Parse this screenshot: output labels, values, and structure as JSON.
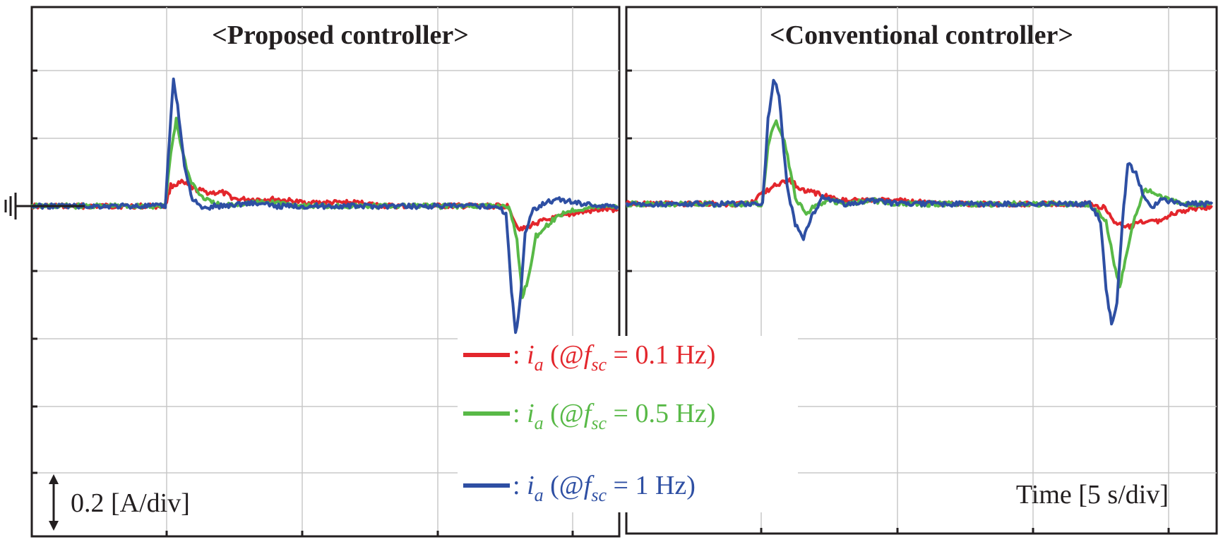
{
  "chart_data": [
    {
      "type": "line",
      "title": "<Proposed controller>",
      "units": {
        "y": "A",
        "y_scale": "0.2 [A/div]",
        "x": "s",
        "x_scale": "Time [5 s/div]"
      },
      "grid": true,
      "ylim": [
        -0.8,
        0.8
      ],
      "xlim": [
        0,
        21.5
      ],
      "series": [
        {
          "name_prefix": "ia",
          "freq_label": "0.1 Hz",
          "color": "#e3262c",
          "x": [
            0,
            4.5,
            4.9,
            5.1,
            5.5,
            6.0,
            6.5,
            7.0,
            7.5,
            8.0,
            9.0,
            10.0,
            11.0,
            12.0,
            13.0,
            14.0,
            17.0,
            17.5,
            17.8,
            18.0,
            18.5,
            19.0,
            19.5,
            20.0,
            21.0,
            21.5
          ],
          "y": [
            0,
            0.0,
            0.0,
            0.06,
            0.07,
            0.05,
            0.04,
            0.04,
            0.02,
            0.02,
            0.02,
            0.01,
            0.01,
            0.01,
            0.0,
            0.0,
            0.0,
            0.0,
            -0.06,
            -0.07,
            -0.05,
            -0.04,
            -0.03,
            -0.02,
            -0.01,
            -0.01
          ]
        },
        {
          "name_prefix": "ia",
          "freq_label": "0.5 Hz",
          "color": "#58b947",
          "x": [
            0,
            4.5,
            4.9,
            5.1,
            5.3,
            5.5,
            5.8,
            6.2,
            6.6,
            7.0,
            8.0,
            9.0,
            10.0,
            12.0,
            14.0,
            17.0,
            17.5,
            17.8,
            18.0,
            18.2,
            18.5,
            19.0,
            19.5,
            20.0,
            21.0,
            21.5
          ],
          "y": [
            0,
            0.0,
            0.0,
            0.16,
            0.26,
            0.17,
            0.08,
            0.03,
            0.01,
            0.0,
            0.01,
            0.01,
            0.0,
            0.0,
            0.0,
            0.0,
            0.0,
            -0.1,
            -0.27,
            -0.22,
            -0.09,
            -0.05,
            -0.02,
            -0.01,
            0.0,
            0.0
          ]
        },
        {
          "name_prefix": "ia",
          "freq_label": "1 Hz",
          "color": "#2e4fa3",
          "x": [
            0,
            4.5,
            4.9,
            5.05,
            5.2,
            5.35,
            5.6,
            5.9,
            6.3,
            6.7,
            7.0,
            8.0,
            9.0,
            10.0,
            12.0,
            14.0,
            17.0,
            17.4,
            17.6,
            17.75,
            17.9,
            18.1,
            18.4,
            18.8,
            19.3,
            20.0,
            21.0,
            21.5
          ],
          "y": [
            0,
            0.0,
            0.0,
            0.2,
            0.38,
            0.3,
            0.12,
            0.02,
            -0.01,
            0.0,
            0.0,
            0.01,
            0.0,
            0.0,
            0.0,
            0.0,
            0.0,
            -0.02,
            -0.25,
            -0.38,
            -0.3,
            -0.08,
            -0.01,
            0.01,
            0.02,
            0.01,
            0.0,
            0.0
          ]
        }
      ]
    },
    {
      "type": "line",
      "title": "<Conventional controller>",
      "grid": true,
      "ylim": [
        -0.8,
        0.8
      ],
      "xlim": [
        0,
        21.5
      ],
      "series": [
        {
          "name_prefix": "ia",
          "freq_label": "0.1 Hz",
          "color": "#e3262c",
          "x": [
            0,
            4.5,
            5.0,
            5.5,
            6.0,
            6.5,
            7.0,
            7.5,
            8.0,
            9.0,
            10.0,
            12.0,
            14.0,
            17.0,
            17.5,
            17.9,
            18.3,
            18.7,
            19.0,
            19.5,
            20.0,
            20.5,
            21.0,
            21.5
          ],
          "y": [
            0,
            0.0,
            0.03,
            0.06,
            0.07,
            0.04,
            0.03,
            0.02,
            0.01,
            0.01,
            0.01,
            0.0,
            0.0,
            0.0,
            -0.01,
            -0.05,
            -0.07,
            -0.06,
            -0.05,
            -0.05,
            -0.03,
            -0.02,
            -0.01,
            -0.01
          ]
        },
        {
          "name_prefix": "ia",
          "freq_label": "0.5 Hz",
          "color": "#58b947",
          "x": [
            0,
            4.5,
            5.0,
            5.2,
            5.5,
            5.8,
            6.2,
            6.6,
            7.0,
            7.5,
            8.0,
            9.0,
            10.0,
            12.0,
            14.0,
            17.0,
            17.6,
            17.9,
            18.1,
            18.3,
            18.6,
            19.0,
            19.5,
            20.0,
            20.5,
            21.0,
            21.5
          ],
          "y": [
            0,
            0.0,
            0.0,
            0.18,
            0.25,
            0.19,
            0.02,
            -0.03,
            0.0,
            0.01,
            0.0,
            0.01,
            0.0,
            0.0,
            0.0,
            0.0,
            -0.05,
            -0.18,
            -0.25,
            -0.17,
            -0.05,
            0.04,
            0.03,
            0.01,
            0.0,
            0.0,
            0.0
          ]
        },
        {
          "name_prefix": "ia",
          "freq_label": "1 Hz",
          "color": "#2e4fa3",
          "x": [
            0,
            4.5,
            5.0,
            5.2,
            5.4,
            5.6,
            5.9,
            6.2,
            6.5,
            6.8,
            7.2,
            7.6,
            8.0,
            9.0,
            10.0,
            12.0,
            14.0,
            17.0,
            17.4,
            17.6,
            17.8,
            18.0,
            18.2,
            18.4,
            18.7,
            19.0,
            19.3,
            19.6,
            20.0,
            20.5,
            21.0,
            21.5
          ],
          "y": [
            0,
            0.0,
            0.0,
            0.25,
            0.37,
            0.33,
            0.05,
            -0.06,
            -0.1,
            -0.04,
            0.02,
            0.01,
            0.0,
            0.01,
            0.0,
            0.0,
            0.0,
            0.0,
            -0.05,
            -0.25,
            -0.36,
            -0.3,
            -0.05,
            0.12,
            0.09,
            0.02,
            -0.01,
            0.01,
            0.01,
            0.0,
            0.0,
            0.0
          ]
        }
      ]
    }
  ],
  "legend": [
    {
      "prefix": ": ",
      "var": "i",
      "var_sub": "a",
      "open": " (@",
      "f": "f",
      "f_sub": "sc",
      "rest": " = 0.1 Hz)",
      "color": "#e3262c"
    },
    {
      "prefix": ": ",
      "var": "i",
      "var_sub": "a",
      "open": " (@",
      "f": "f",
      "f_sub": "sc",
      "rest": " = 0.5 Hz)",
      "color": "#58b947"
    },
    {
      "prefix": ": ",
      "var": "i",
      "var_sub": "a",
      "open": " (@",
      "f": "f",
      "f_sub": "sc",
      "rest": " = 1 Hz)",
      "color": "#2e4fa3"
    }
  ],
  "annotations": {
    "scale_label": "0.2 [A/div]",
    "time_label": "Time [5 s/div]",
    "arrow_glyph": "↕"
  }
}
